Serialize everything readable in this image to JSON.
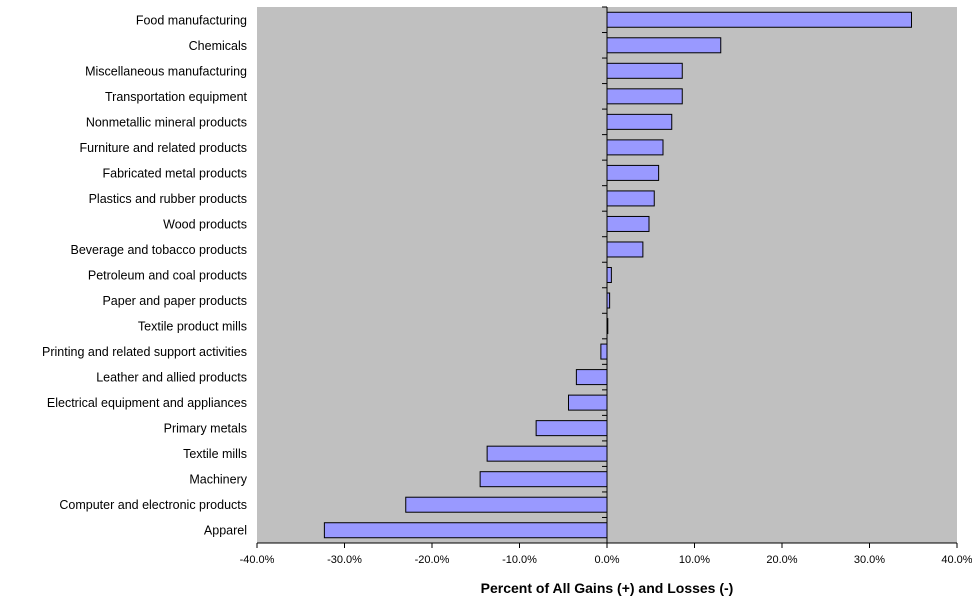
{
  "chart_data": {
    "type": "bar",
    "orientation": "horizontal",
    "categories": [
      "Food manufacturing",
      "Chemicals",
      "Miscellaneous manufacturing",
      "Transportation equipment",
      "Nonmetallic mineral products",
      "Furniture and related products",
      "Fabricated metal products",
      "Plastics and rubber products",
      "Wood products",
      "Beverage and tobacco products",
      "Petroleum and coal products",
      "Paper and paper products",
      "Textile product mills",
      "Printing and related support activities",
      "Leather and allied products",
      "Electrical equipment and appliances",
      "Primary metals",
      "Textile mills",
      "Machinery",
      "Computer and electronic products",
      "Apparel"
    ],
    "values": [
      34.8,
      13.0,
      8.6,
      8.6,
      7.4,
      6.4,
      5.9,
      5.4,
      4.8,
      4.1,
      0.5,
      0.3,
      0.05,
      -0.7,
      -3.5,
      -4.4,
      -8.1,
      -13.7,
      -14.5,
      -23.0,
      -32.3
    ],
    "xlabel": "Percent of All Gains (+) and Losses (-)",
    "xlim": [
      -40,
      40
    ],
    "xticks": [
      "-40.0%",
      "-30.0%",
      "-20.0%",
      "-10.0%",
      "0.0%",
      "10.0%",
      "20.0%",
      "30.0%",
      "40.0%"
    ],
    "grid": false,
    "colors": {
      "bar_fill": "#9999ff",
      "bar_stroke": "#000000",
      "plot_background": "#c0c0c0"
    }
  }
}
